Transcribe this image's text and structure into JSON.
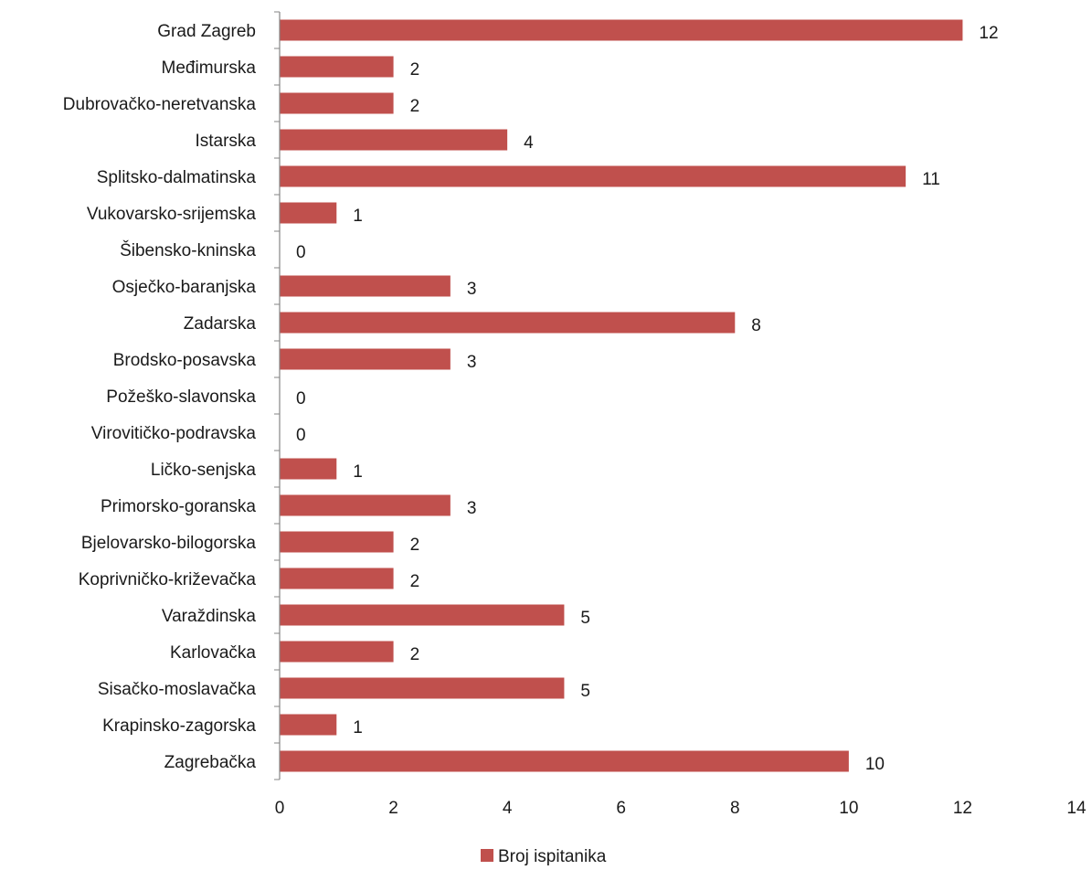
{
  "chart_data": {
    "type": "bar",
    "orientation": "horizontal",
    "categories": [
      "Grad Zagreb",
      "Međimurska",
      "Dubrovačko-neretvanska",
      "Istarska",
      "Splitsko-dalmatinska",
      "Vukovarsko-srijemska",
      "Šibensko-kninska",
      "Osječko-baranjska",
      "Zadarska",
      "Brodsko-posavska",
      "Požeško-slavonska",
      "Virovitičko-podravska",
      "Ličko-senjska",
      "Primorsko-goranska",
      "Bjelovarsko-bilogorska",
      "Koprivničko-križevačka",
      "Varaždinska",
      "Karlovačka",
      "Sisačko-moslavačka",
      "Krapinsko-zagorska",
      "Zagrebačka"
    ],
    "series": [
      {
        "name": "Broj ispitanika",
        "color": "#c0504d",
        "values": [
          12,
          2,
          2,
          4,
          11,
          1,
          0,
          3,
          8,
          3,
          0,
          0,
          1,
          3,
          2,
          2,
          5,
          2,
          5,
          1,
          10
        ]
      }
    ],
    "value_labels": [
      "12",
      "2",
      "2",
      "4",
      "11",
      "1",
      "0",
      "3",
      "8",
      "3",
      "0",
      "0",
      "1",
      "3",
      "2",
      "2",
      "5",
      "2",
      "5",
      "1",
      "10"
    ],
    "xlim": [
      0,
      14
    ],
    "xticks": [
      0,
      2,
      4,
      6,
      8,
      10,
      12,
      14
    ],
    "xtick_labels": [
      "0",
      "2",
      "4",
      "6",
      "8",
      "10",
      "12",
      "14"
    ],
    "grid": false,
    "legend": "bottom-center",
    "title": "",
    "xlabel": "",
    "ylabel": ""
  }
}
